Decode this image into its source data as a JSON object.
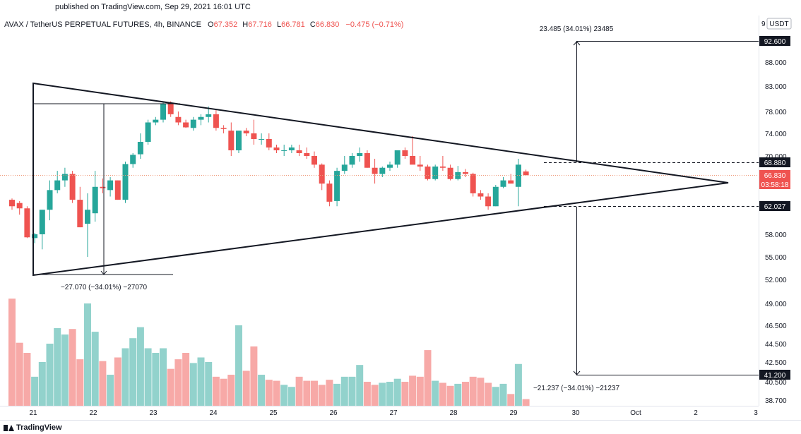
{
  "published": "published on TradingView.com, Sep 29, 2021 16:01 UTC",
  "logo_text": "TradingView",
  "colors": {
    "up": "#26a69a",
    "down": "#ef5350",
    "vol_up": "#92d2cc",
    "vol_down": "#f7a9a7",
    "line": "#131722",
    "dotted": "#ef9a7a"
  },
  "legend": {
    "symbol": "AVAX / TetherUS PERPETUAL FUTURES, 4h, BINANCE",
    "o_label": "O",
    "o": "67.352",
    "h_label": "H",
    "h": "67.716",
    "l_label": "L",
    "l": "66.781",
    "c_label": "C",
    "c": "66.830",
    "change": "−0.475 (−0.71%)"
  },
  "price_axis": {
    "currency": "USDT",
    "ticks": [
      "88.000",
      "83.000",
      "78.000",
      "74.000",
      "70.000",
      "58.000",
      "55.000",
      "52.000",
      "49.000",
      "46.500",
      "44.500",
      "42.500",
      "40.500",
      "38.700"
    ],
    "labels": [
      {
        "text": "92.600",
        "style": "black"
      },
      {
        "text": "68.880",
        "style": "black"
      },
      {
        "text": "66.830",
        "style": "red"
      },
      {
        "text": "03:58:18",
        "style": "red"
      },
      {
        "text": "62.027",
        "style": "black"
      },
      {
        "text": "41.200",
        "style": "black"
      }
    ]
  },
  "measure_labels": {
    "upper": "23.485 (34.01%) 23485",
    "left": "−27.070 (−34.01%) −27070",
    "lower": "−21.237 (−34.01%) −21237"
  },
  "time_axis": [
    "21",
    "22",
    "23",
    "24",
    "25",
    "26",
    "27",
    "28",
    "29",
    "30",
    "Oct",
    "2",
    "3"
  ],
  "chart_data": {
    "type": "candlestick",
    "ylim": [
      38.7,
      96
    ],
    "candles": [
      [
        63.0,
        63.2,
        61.5,
        62.0
      ],
      [
        62.5,
        62.8,
        60.8,
        61.7
      ],
      [
        61.7,
        62.0,
        57.5,
        57.6
      ],
      [
        57.5,
        58.2,
        56.8,
        58.0
      ],
      [
        58.0,
        61.5,
        56.0,
        61.5
      ],
      [
        61.5,
        66.0,
        60.0,
        64.5
      ],
      [
        64.5,
        67.5,
        64.0,
        66.0
      ],
      [
        66.0,
        68.0,
        65.0,
        67.0
      ],
      [
        67.0,
        67.5,
        62.5,
        63.0
      ],
      [
        63.0,
        65.0,
        59.0,
        59.0
      ],
      [
        59.5,
        64.0,
        55.0,
        61.5
      ],
      [
        61.0,
        67.5,
        59.8,
        65.0
      ],
      [
        65.0,
        66.3,
        64.0,
        64.8
      ],
      [
        64.5,
        66.5,
        63.5,
        66.0
      ],
      [
        66.0,
        66.0,
        63.0,
        63.0
      ],
      [
        63.0,
        69.0,
        62.5,
        68.6
      ],
      [
        68.6,
        70.5,
        68.0,
        70.2
      ],
      [
        70.3,
        74.0,
        69.5,
        72.5
      ],
      [
        72.5,
        76.5,
        72.0,
        76.0
      ],
      [
        76.0,
        77.0,
        75.5,
        76.5
      ],
      [
        76.5,
        80.0,
        76.0,
        79.5
      ],
      [
        79.5,
        80.0,
        77.0,
        77.5
      ],
      [
        77.0,
        78.0,
        75.5,
        76.0
      ],
      [
        76.0,
        76.5,
        75.0,
        75.1
      ],
      [
        75.0,
        77.0,
        74.5,
        76.5
      ],
      [
        76.5,
        77.5,
        75.5,
        77.0
      ],
      [
        77.0,
        79.0,
        76.0,
        77.5
      ],
      [
        77.5,
        78.5,
        74.5,
        75.0
      ],
      [
        75.0,
        75.5,
        74.0,
        74.8
      ],
      [
        74.5,
        76.0,
        70.0,
        71.0
      ],
      [
        71.0,
        74.5,
        70.5,
        74.5
      ],
      [
        74.5,
        75.0,
        73.5,
        74.0
      ],
      [
        74.0,
        76.5,
        72.0,
        73.0
      ],
      [
        73.0,
        74.0,
        72.0,
        73.0
      ],
      [
        73.0,
        74.0,
        71.0,
        71.5
      ],
      [
        71.5,
        72.0,
        70.5,
        71.0
      ],
      [
        71.0,
        72.0,
        70.0,
        71.0
      ],
      [
        71.0,
        72.0,
        70.5,
        71.5
      ],
      [
        71.0,
        72.0,
        70.0,
        70.5
      ],
      [
        70.5,
        71.5,
        69.5,
        70.0
      ],
      [
        70.0,
        70.8,
        68.0,
        68.5
      ],
      [
        68.5,
        68.7,
        64.5,
        65.5
      ],
      [
        65.5,
        66.0,
        62.0,
        62.7
      ],
      [
        62.8,
        68.0,
        62.0,
        67.5
      ],
      [
        67.5,
        70.0,
        67.0,
        68.5
      ],
      [
        68.5,
        70.5,
        68.0,
        70.0
      ],
      [
        70.0,
        71.5,
        69.0,
        70.5
      ],
      [
        70.5,
        71.0,
        68.0,
        68.0
      ],
      [
        68.0,
        69.5,
        65.5,
        67.0
      ],
      [
        67.0,
        68.2,
        66.5,
        68.0
      ],
      [
        68.0,
        69.0,
        67.5,
        68.5
      ],
      [
        68.5,
        71.0,
        68.0,
        71.0
      ],
      [
        71.0,
        71.5,
        69.5,
        70.0
      ],
      [
        70.0,
        73.5,
        69.0,
        68.5
      ],
      [
        68.5,
        70.0,
        67.5,
        68.2
      ],
      [
        68.2,
        68.5,
        66.0,
        66.2
      ],
      [
        66.2,
        68.5,
        66.0,
        68.2
      ],
      [
        68.2,
        70.0,
        67.5,
        68.0
      ],
      [
        68.0,
        68.5,
        66.0,
        66.2
      ],
      [
        66.2,
        68.3,
        66.0,
        67.3
      ],
      [
        67.3,
        67.8,
        66.5,
        67.0
      ],
      [
        67.0,
        67.2,
        63.5,
        64.0
      ],
      [
        64.0,
        64.5,
        63.0,
        63.5
      ],
      [
        63.5,
        64.0,
        61.5,
        62.0
      ],
      [
        62.0,
        65.3,
        62.0,
        65.0
      ],
      [
        65.0,
        66.5,
        64.8,
        66.0
      ],
      [
        66.0,
        67.0,
        65.5,
        65.5
      ],
      [
        65.0,
        69.5,
        62.0,
        68.5
      ],
      [
        67.4,
        67.7,
        66.8,
        66.8
      ]
    ],
    "volume": [
      49.6,
      44.6,
      43.5,
      41.0,
      42.5,
      44.5,
      46.2,
      45.5,
      46.1,
      42.8,
      49.0,
      45.8,
      42.6,
      41.2,
      43.0,
      44.0,
      45.1,
      46.3,
      44.0,
      43.5,
      44.0,
      41.8,
      42.8,
      43.5,
      42.4,
      43.0,
      42.5,
      41.0,
      40.8,
      41.2,
      46.5,
      41.6,
      44.2,
      41.2,
      40.7,
      40.6,
      40.2,
      40.0,
      41.0,
      40.6,
      40.6,
      40.2,
      40.7,
      40.3,
      41.0,
      41.0,
      42.2,
      40.5,
      40.2,
      40.4,
      40.5,
      40.8,
      40.5,
      41.1,
      41.0,
      43.8,
      40.6,
      40.4,
      40.1,
      40.3,
      40.5,
      41.0,
      40.9,
      40.4,
      40.0,
      40.3,
      39.3,
      42.3,
      38.8
    ],
    "triangle_points": [
      {
        "time": "2021-09-21 00:00",
        "price": 84.5
      },
      {
        "time": "2021-09-21 00:00",
        "price": 52.8
      },
      {
        "time": "2021-10-02 12:00",
        "price": 66.3
      }
    ],
    "measure": {
      "upper_target": 92.6,
      "breakout_high": 68.88,
      "breakout_low": 62.027,
      "lower_target": 41.2,
      "last_price": 66.83
    }
  }
}
